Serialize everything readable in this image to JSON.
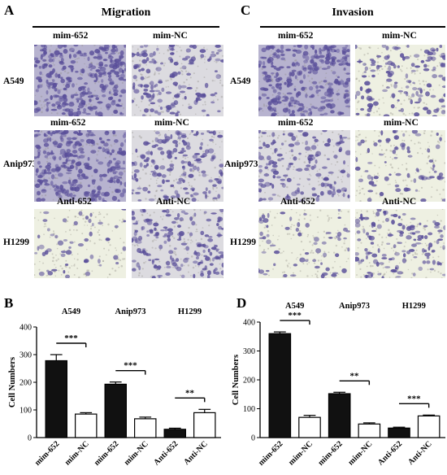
{
  "panels": {
    "A": {
      "letter": "A",
      "title": "Migration"
    },
    "C": {
      "letter": "C",
      "title": "Invasion"
    },
    "B": {
      "letter": "B"
    },
    "D": {
      "letter": "D"
    }
  },
  "images": {
    "rows": [
      "A549",
      "Anip973",
      "H1299"
    ],
    "col_labels": [
      [
        "mim-652",
        "mim-NC"
      ],
      [
        "mim-652",
        "mim-NC"
      ],
      [
        "Anti-652",
        "Anti-NC"
      ]
    ],
    "colors": {
      "stain": "#5a4f9a",
      "background_light": "#eef0e2"
    }
  },
  "chart_data": [
    {
      "id": "B",
      "type": "bar",
      "ylabel": "Cell Numbers",
      "ylim": [
        0,
        400
      ],
      "yticks": [
        0,
        100,
        200,
        300,
        400
      ],
      "groups": [
        "A549",
        "Anip973",
        "H1299"
      ],
      "categories": [
        "mim-652",
        "mim-NC",
        "mim-652",
        "mim-NC",
        "Anti-652",
        "Anti-NC"
      ],
      "values": [
        278,
        85,
        193,
        68,
        30,
        90
      ],
      "errors": [
        22,
        5,
        8,
        6,
        4,
        12
      ],
      "fills": [
        "#111111",
        "#ffffff",
        "#111111",
        "#ffffff",
        "#111111",
        "#ffffff"
      ],
      "significance": [
        "***",
        "***",
        "**"
      ]
    },
    {
      "id": "D",
      "type": "bar",
      "ylabel": "Cell Numbers",
      "ylim": [
        0,
        400
      ],
      "yticks": [
        0,
        100,
        200,
        300,
        400
      ],
      "groups": [
        "A549",
        "Anip973",
        "H1299"
      ],
      "categories": [
        "mim-652",
        "mim-NC",
        "mim-652",
        "mim-NC",
        "Anti-652",
        "Anti-NC"
      ],
      "values": [
        360,
        70,
        152,
        47,
        33,
        75
      ],
      "errors": [
        6,
        7,
        5,
        4,
        3,
        3
      ],
      "fills": [
        "#111111",
        "#ffffff",
        "#111111",
        "#ffffff",
        "#111111",
        "#ffffff"
      ],
      "significance": [
        "***",
        "**",
        "***"
      ]
    }
  ]
}
